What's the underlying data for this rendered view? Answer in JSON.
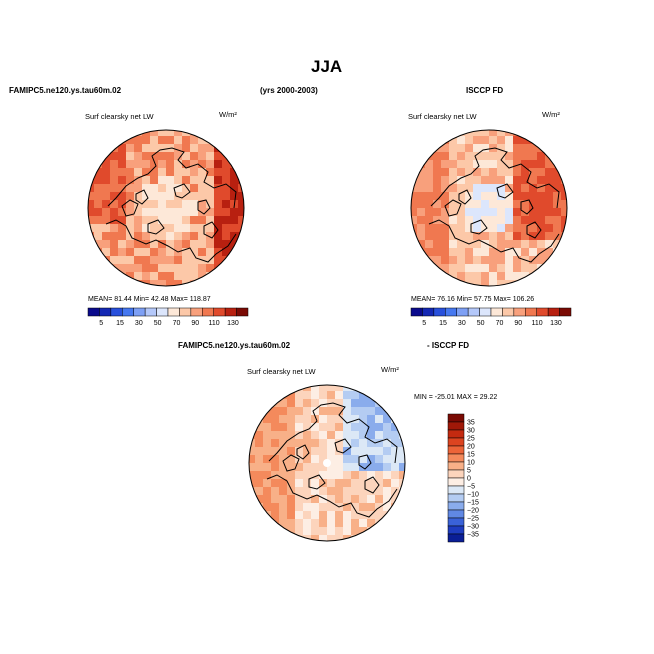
{
  "page": {
    "title": "JJA",
    "case_name": "FAMIPC5.ne120.ys.tau60m.02",
    "years": "(yrs 2000-2003)",
    "obs_name": "ISCCP FD",
    "diff_case_name": "FAMIPC5.ne120.ys.tau60m.02",
    "diff_obs_name": "- ISCCP FD"
  },
  "chart_data": [
    {
      "type": "heatmap",
      "projection": "north-polar-stereographic",
      "variable": "Surf clearsky net LW",
      "units": "W/m²",
      "stats": {
        "mean": "81.44",
        "min": "42.48",
        "max": "118.87"
      },
      "stats_text": "MEAN=  81.44  Min=  42.48  Max= 118.87",
      "colorbar": {
        "orientation": "horizontal",
        "levels": [
          5,
          15,
          30,
          50,
          70,
          90,
          110,
          130
        ],
        "tick_labels": [
          "5",
          "15",
          "30",
          "50",
          "70",
          "90",
          "110",
          "130"
        ],
        "colors": [
          "#0a0a8c",
          "#1428b4",
          "#2850dc",
          "#4678f0",
          "#7ea0f5",
          "#b4c8fa",
          "#dce6fc",
          "#fde8d8",
          "#fcc8a8",
          "#f8a07c",
          "#f07850",
          "#e04a2c",
          "#b82010",
          "#7a0a04"
        ]
      }
    },
    {
      "type": "heatmap",
      "projection": "north-polar-stereographic",
      "variable": "Surf clearsky net LW",
      "units": "W/m²",
      "stats": {
        "mean": "76.16",
        "min": "57.75",
        "max": "106.26"
      },
      "stats_text": "MEAN=  76.16  Min=  57.75  Max= 106.26",
      "colorbar": {
        "orientation": "horizontal",
        "levels": [
          5,
          15,
          30,
          50,
          70,
          90,
          110,
          130
        ],
        "tick_labels": [
          "5",
          "15",
          "30",
          "50",
          "70",
          "90",
          "110",
          "130"
        ],
        "colors": [
          "#0a0a8c",
          "#1428b4",
          "#2850dc",
          "#4678f0",
          "#7ea0f5",
          "#b4c8fa",
          "#dce6fc",
          "#fde8d8",
          "#fcc8a8",
          "#f8a07c",
          "#f07850",
          "#e04a2c",
          "#b82010",
          "#7a0a04"
        ]
      }
    },
    {
      "type": "heatmap",
      "projection": "north-polar-stereographic",
      "variable": "Surf clearsky net LW",
      "units": "W/m²",
      "stats": {
        "min": "-25.01",
        "max": "29.22"
      },
      "stats_text": "MIN = -25.01  MAX =  29.22",
      "colorbar": {
        "orientation": "vertical",
        "levels": [
          35,
          30,
          25,
          20,
          15,
          10,
          5,
          0,
          -5,
          -10,
          -15,
          -20,
          -25,
          -30,
          -35
        ],
        "tick_labels": [
          "35",
          "30",
          "25",
          "20",
          "15",
          "10",
          "5",
          "0",
          "−5",
          "−10",
          "−15",
          "−20",
          "−25",
          "−30",
          "−35"
        ],
        "colors": [
          "#7a0a04",
          "#a01808",
          "#c42a10",
          "#dc4420",
          "#ec6438",
          "#f48a5c",
          "#f8b088",
          "#fcd4bc",
          "#fdeee4",
          "#dce8f6",
          "#b4ccf2",
          "#8aacec",
          "#6088e4",
          "#3a62d8",
          "#1e3cc0",
          "#0a1e96"
        ]
      }
    }
  ]
}
